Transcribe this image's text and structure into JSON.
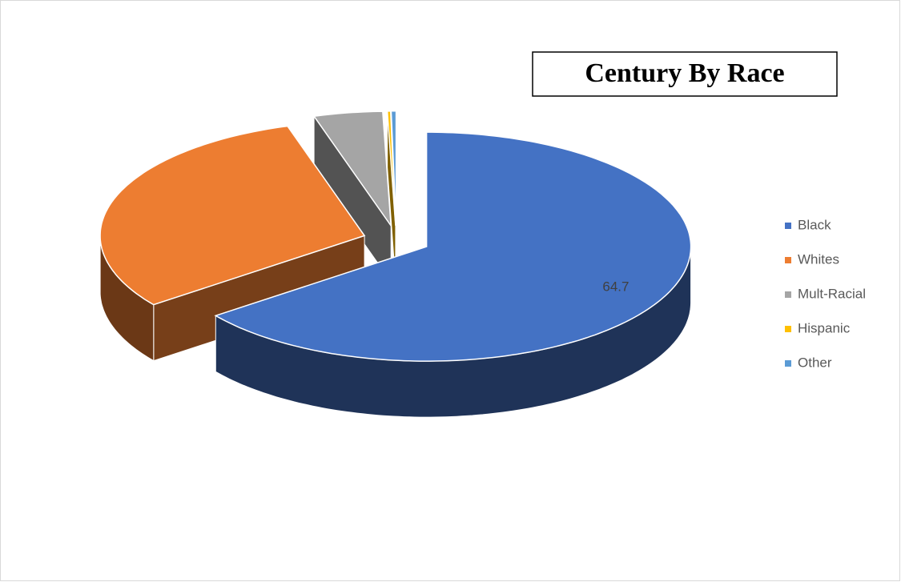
{
  "chart_data": {
    "type": "pie3d",
    "title": "Century By Race",
    "categories": [
      "Black",
      "Whites",
      "Mult-Racial",
      "Hispanic",
      "Other"
    ],
    "values": [
      64.7,
      30.6,
      4.2,
      0.2,
      0.3
    ],
    "value_labels": [
      "64.7",
      null,
      null,
      null,
      null
    ],
    "colors": [
      "#4472c4",
      "#ed7d31",
      "#a5a5a5",
      "#ffc000",
      "#5b9bd5"
    ],
    "legend": "right",
    "exploded": true
  }
}
